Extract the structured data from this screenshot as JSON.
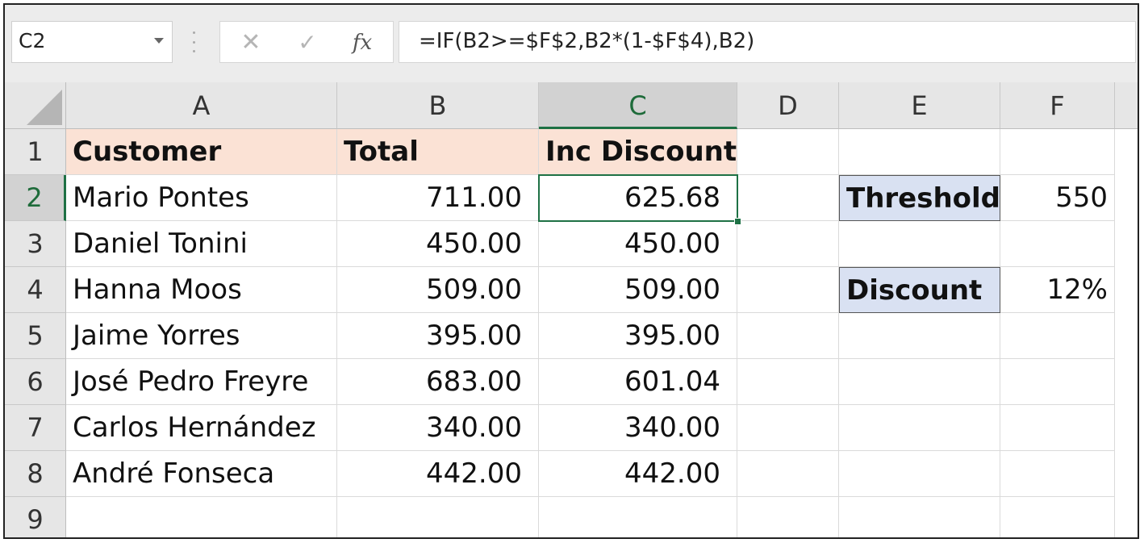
{
  "name_box": {
    "value": "C2"
  },
  "formula_bar": {
    "cancel_glyph": "✕",
    "enter_glyph": "✓",
    "fx_label": "fx",
    "formula": "=IF(B2>=$F$2,B2*(1-$F$4),B2)"
  },
  "columns": [
    "A",
    "B",
    "C",
    "D",
    "E",
    "F"
  ],
  "rows": [
    "1",
    "2",
    "3",
    "4",
    "5",
    "6",
    "7",
    "8",
    "9"
  ],
  "headers": {
    "customer": "Customer",
    "total": "Total",
    "inc_discount": "Inc Discount"
  },
  "data_rows": [
    {
      "customer": "Mario Pontes",
      "total": "711.00",
      "inc_discount": "625.68"
    },
    {
      "customer": "Daniel Tonini",
      "total": "450.00",
      "inc_discount": "450.00"
    },
    {
      "customer": "Hanna Moos",
      "total": "509.00",
      "inc_discount": "509.00"
    },
    {
      "customer": "Jaime Yorres",
      "total": "395.00",
      "inc_discount": "395.00"
    },
    {
      "customer": "José Pedro Freyre",
      "total": "683.00",
      "inc_discount": "601.04"
    },
    {
      "customer": "Carlos Hernández",
      "total": "340.00",
      "inc_discount": "340.00"
    },
    {
      "customer": "André Fonseca",
      "total": "442.00",
      "inc_discount": "442.00"
    }
  ],
  "params": {
    "threshold_label": "Threshold",
    "threshold_value": "550",
    "discount_label": "Discount",
    "discount_value": "12%"
  },
  "selection": {
    "active_cell": "C2",
    "active_column": "C",
    "active_row": "2"
  },
  "colors": {
    "header_fill": "#fbe2d5",
    "label_fill": "#d9e1f2",
    "selection_green": "#1e7145"
  }
}
